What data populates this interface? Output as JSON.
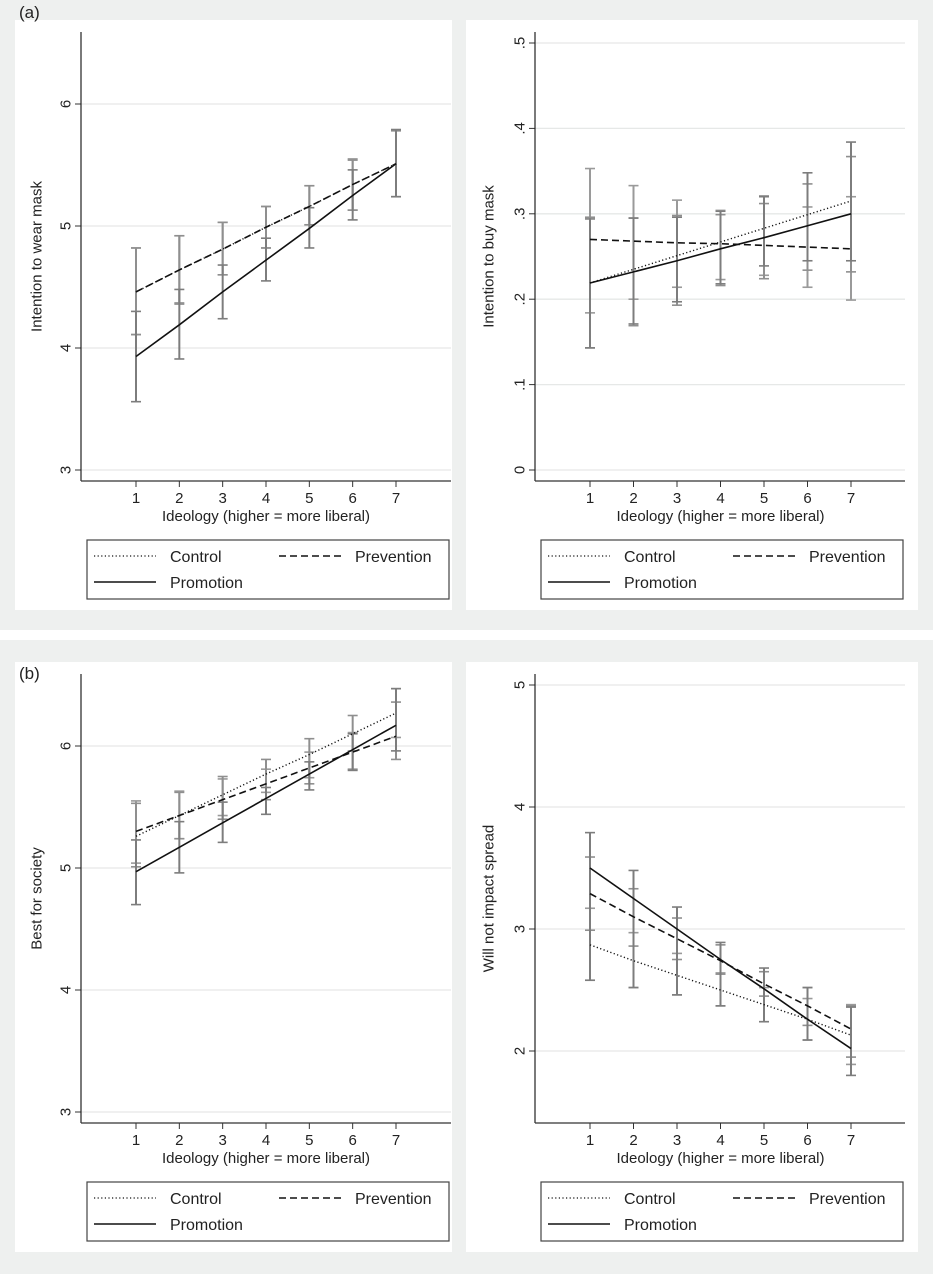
{
  "panels_labels": {
    "a": "(a)",
    "b": "(b)"
  },
  "legend": {
    "control": "Control",
    "prevention": "Prevention",
    "promotion": "Promotion"
  },
  "chart_data": [
    {
      "id": "a-left",
      "panel": "(a)",
      "type": "line",
      "xlabel": "Ideology (higher = more liberal)",
      "ylabel": "Intention to wear mask",
      "x": [
        1,
        2,
        3,
        4,
        5,
        6,
        7
      ],
      "xticks": [
        "1",
        "2",
        "3",
        "4",
        "5",
        "6",
        "7"
      ],
      "yticks": [
        "3",
        "4",
        "5",
        "6"
      ],
      "ytick_values": [
        3,
        4,
        5,
        6
      ],
      "ylim": [
        2.9,
        6.6
      ],
      "xlim": [
        -0.3,
        8.3
      ],
      "grid": true,
      "legend_position": "bottom",
      "series": [
        {
          "name": "Control",
          "style": "dotted",
          "values": [
            4.46,
            4.64,
            4.81,
            4.99,
            5.16,
            5.34,
            5.51
          ],
          "ci_low": [
            4.11,
            4.37,
            4.6,
            4.82,
            5.01,
            5.13,
            5.24
          ],
          "ci_high": [
            4.82,
            4.92,
            5.03,
            5.16,
            5.33,
            5.55,
            5.79
          ]
        },
        {
          "name": "Prevention",
          "style": "dashed",
          "values": [
            4.46,
            4.64,
            4.81,
            4.99,
            5.16,
            5.34,
            5.51
          ],
          "ci_low": [
            4.11,
            4.36,
            4.6,
            4.82,
            5.01,
            5.13,
            5.24
          ],
          "ci_high": [
            4.82,
            4.92,
            5.03,
            5.16,
            5.33,
            5.54,
            5.78
          ]
        },
        {
          "name": "Promotion",
          "style": "solid",
          "values": [
            3.93,
            4.19,
            4.46,
            4.72,
            4.98,
            5.25,
            5.51
          ],
          "ci_low": [
            3.56,
            3.91,
            4.24,
            4.55,
            4.82,
            5.05,
            5.24
          ],
          "ci_high": [
            4.3,
            4.48,
            4.68,
            4.9,
            5.15,
            5.46,
            5.79
          ]
        }
      ]
    },
    {
      "id": "a-right",
      "panel": "(a)",
      "type": "line",
      "xlabel": "Ideology (higher = more liberal)",
      "ylabel": "Intention to buy mask",
      "x": [
        1,
        2,
        3,
        4,
        5,
        6,
        7
      ],
      "xticks": [
        "1",
        "2",
        "3",
        "4",
        "5",
        "6",
        "7"
      ],
      "yticks": [
        "0",
        ".1",
        ".2",
        ".3",
        ".4",
        ".5"
      ],
      "ytick_values": [
        0,
        0.1,
        0.2,
        0.3,
        0.4,
        0.5
      ],
      "ylim": [
        -0.013,
        0.506
      ],
      "xlim": [
        -0.3,
        8.3
      ],
      "grid": true,
      "legend_position": "bottom",
      "series": [
        {
          "name": "Control",
          "style": "dotted",
          "values": [
            0.219,
            0.235,
            0.251,
            0.267,
            0.283,
            0.299,
            0.315
          ],
          "ci_low": [
            0.184,
            0.2,
            0.214,
            0.223,
            0.228,
            0.214,
            0.199
          ],
          "ci_high": [
            0.353,
            0.333,
            0.316,
            0.304,
            0.321,
            0.308,
            0.32
          ]
        },
        {
          "name": "Prevention",
          "style": "dashed",
          "values": [
            0.27,
            0.268,
            0.266,
            0.265,
            0.263,
            0.261,
            0.259
          ],
          "ci_low": [
            0.143,
            0.169,
            0.193,
            0.216,
            0.224,
            0.234,
            0.232
          ],
          "ci_high": [
            0.296,
            0.295,
            0.298,
            0.299,
            0.312,
            0.335,
            0.367
          ]
        },
        {
          "name": "Promotion",
          "style": "solid",
          "values": [
            0.219,
            0.232,
            0.245,
            0.259,
            0.272,
            0.286,
            0.3
          ],
          "ci_low": [
            0.143,
            0.171,
            0.197,
            0.218,
            0.239,
            0.245,
            0.245
          ],
          "ci_high": [
            0.294,
            0.295,
            0.296,
            0.303,
            0.32,
            0.348,
            0.384
          ]
        }
      ]
    },
    {
      "id": "b-left",
      "panel": "(b)",
      "type": "line",
      "xlabel": "Ideology (higher = more liberal)",
      "ylabel": "Best for society",
      "x": [
        1,
        2,
        3,
        4,
        5,
        6,
        7
      ],
      "xticks": [
        "1",
        "2",
        "3",
        "4",
        "5",
        "6",
        "7"
      ],
      "yticks": [
        "3",
        "4",
        "5",
        "6"
      ],
      "ytick_values": [
        3,
        4,
        5,
        6
      ],
      "ylim": [
        2.9,
        6.6
      ],
      "xlim": [
        -0.3,
        8.3
      ],
      "grid": true,
      "legend_position": "bottom",
      "series": [
        {
          "name": "Control",
          "style": "dotted",
          "values": [
            5.26,
            5.43,
            5.6,
            5.77,
            5.93,
            6.1,
            6.27
          ],
          "ci_low": [
            5.04,
            5.24,
            5.43,
            5.62,
            5.74,
            5.96,
            6.07
          ],
          "ci_high": [
            5.55,
            5.63,
            5.73,
            5.81,
            5.95,
            6.11,
            6.47
          ]
        },
        {
          "name": "Prevention",
          "style": "dashed",
          "values": [
            5.3,
            5.43,
            5.56,
            5.69,
            5.82,
            5.95,
            6.08
          ],
          "ci_low": [
            5.01,
            5.24,
            5.4,
            5.56,
            5.69,
            5.81,
            5.89
          ],
          "ci_high": [
            5.53,
            5.62,
            5.75,
            5.89,
            6.06,
            6.25,
            6.36
          ]
        },
        {
          "name": "Promotion",
          "style": "solid",
          "values": [
            4.97,
            5.17,
            5.37,
            5.57,
            5.77,
            5.97,
            6.17
          ],
          "ci_low": [
            4.7,
            4.96,
            5.21,
            5.44,
            5.64,
            5.8,
            5.96
          ],
          "ci_high": [
            5.23,
            5.38,
            5.54,
            5.66,
            5.87,
            6.1,
            6.47
          ]
        }
      ]
    },
    {
      "id": "b-right",
      "panel": "(b)",
      "type": "line",
      "xlabel": "Ideology (higher = more liberal)",
      "ylabel": "Will not impact spread",
      "x": [
        1,
        2,
        3,
        4,
        5,
        6,
        7
      ],
      "xticks": [
        "1",
        "2",
        "3",
        "4",
        "5",
        "6",
        "7"
      ],
      "yticks": [
        "2",
        "3",
        "4",
        "5"
      ],
      "ytick_values": [
        2,
        3,
        4,
        5
      ],
      "ylim": [
        1.45,
        5.05
      ],
      "xlim": [
        -0.3,
        8.3
      ],
      "grid": true,
      "legend_position": "bottom",
      "series": [
        {
          "name": "Control",
          "style": "dotted",
          "values": [
            2.87,
            2.74,
            2.62,
            2.5,
            2.38,
            2.26,
            2.13
          ],
          "ci_low": [
            2.58,
            2.52,
            2.46,
            2.37,
            2.24,
            2.09,
            1.89
          ],
          "ci_high": [
            3.17,
            2.97,
            2.8,
            2.64,
            2.52,
            2.43,
            2.38
          ]
        },
        {
          "name": "Prevention",
          "style": "dashed",
          "values": [
            3.29,
            3.1,
            2.92,
            2.74,
            2.55,
            2.37,
            2.18
          ],
          "ci_low": [
            2.99,
            2.86,
            2.75,
            2.63,
            2.45,
            2.21,
            1.95
          ],
          "ci_high": [
            3.59,
            3.33,
            3.09,
            2.87,
            2.65,
            2.52,
            2.37
          ]
        },
        {
          "name": "Promotion",
          "style": "solid",
          "values": [
            3.5,
            3.25,
            3.0,
            2.75,
            2.51,
            2.26,
            2.02
          ],
          "ci_low": [
            2.58,
            2.52,
            2.46,
            2.37,
            2.24,
            2.09,
            1.8
          ],
          "ci_high": [
            3.79,
            3.48,
            3.18,
            2.89,
            2.68,
            2.52,
            2.36
          ]
        }
      ]
    }
  ]
}
